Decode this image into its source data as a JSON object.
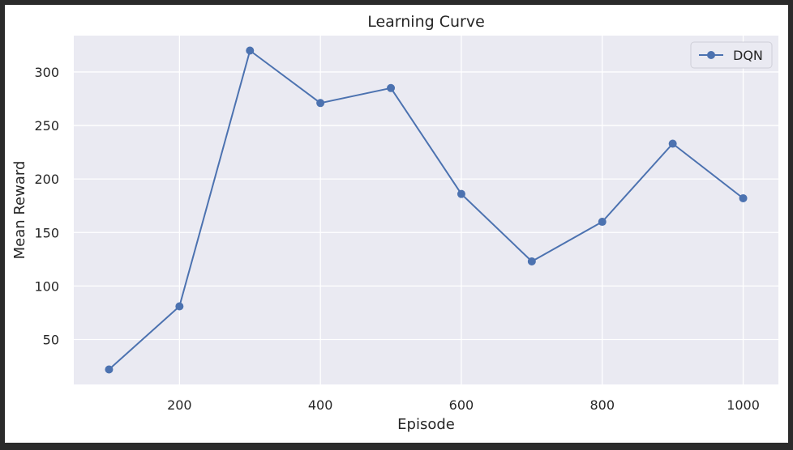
{
  "chart_data": {
    "type": "line",
    "title": "Learning Curve",
    "xlabel": "Episode",
    "ylabel": "Mean Reward",
    "x": [
      100,
      200,
      300,
      400,
      500,
      600,
      700,
      800,
      900,
      1000
    ],
    "xticks": [
      200,
      400,
      600,
      800,
      1000
    ],
    "yticks": [
      50,
      100,
      150,
      200,
      250,
      300
    ],
    "xlim": [
      50,
      1050
    ],
    "ylim": [
      8,
      334
    ],
    "grid": true,
    "legend_position": "top-right",
    "series": [
      {
        "name": "DQN",
        "color": "#4c72b0",
        "marker": "circle",
        "values": [
          22,
          81,
          320,
          271,
          285,
          186,
          123,
          160,
          233,
          182
        ]
      }
    ]
  },
  "colors": {
    "plot_background": "#eaeaf2",
    "grid": "#ffffff",
    "page_background": "#ffffff",
    "frame_border": "#2b2b2b"
  }
}
